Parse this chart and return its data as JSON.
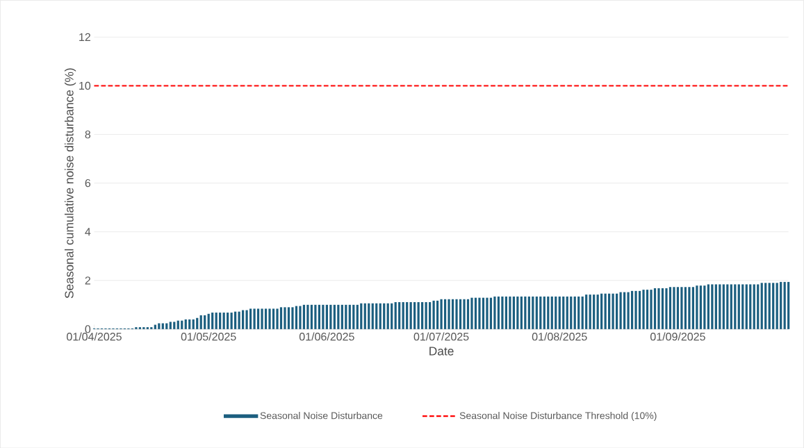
{
  "chart_data": {
    "type": "bar",
    "xlabel": "Date",
    "ylabel": "Seasonal cumulative noise disturbance (%)",
    "x": [
      "2025-04-01",
      "2025-04-02",
      "2025-04-03",
      "2025-04-04",
      "2025-04-05",
      "2025-04-06",
      "2025-04-07",
      "2025-04-08",
      "2025-04-09",
      "2025-04-10",
      "2025-04-11",
      "2025-04-12",
      "2025-04-13",
      "2025-04-14",
      "2025-04-15",
      "2025-04-16",
      "2025-04-17",
      "2025-04-18",
      "2025-04-19",
      "2025-04-20",
      "2025-04-21",
      "2025-04-22",
      "2025-04-23",
      "2025-04-24",
      "2025-04-25",
      "2025-04-26",
      "2025-04-27",
      "2025-04-28",
      "2025-04-29",
      "2025-04-30",
      "2025-05-01",
      "2025-05-02",
      "2025-05-03",
      "2025-05-04",
      "2025-05-05",
      "2025-05-06",
      "2025-05-07",
      "2025-05-08",
      "2025-05-09",
      "2025-05-10",
      "2025-05-11",
      "2025-05-12",
      "2025-05-13",
      "2025-05-14",
      "2025-05-15",
      "2025-05-16",
      "2025-05-17",
      "2025-05-18",
      "2025-05-19",
      "2025-05-20",
      "2025-05-21",
      "2025-05-22",
      "2025-05-23",
      "2025-05-24",
      "2025-05-25",
      "2025-05-26",
      "2025-05-27",
      "2025-05-28",
      "2025-05-29",
      "2025-05-30",
      "2025-05-31",
      "2025-06-01",
      "2025-06-02",
      "2025-06-03",
      "2025-06-04",
      "2025-06-05",
      "2025-06-06",
      "2025-06-07",
      "2025-06-08",
      "2025-06-09",
      "2025-06-10",
      "2025-06-11",
      "2025-06-12",
      "2025-06-13",
      "2025-06-14",
      "2025-06-15",
      "2025-06-16",
      "2025-06-17",
      "2025-06-18",
      "2025-06-19",
      "2025-06-20",
      "2025-06-21",
      "2025-06-22",
      "2025-06-23",
      "2025-06-24",
      "2025-06-25",
      "2025-06-26",
      "2025-06-27",
      "2025-06-28",
      "2025-06-29",
      "2025-06-30",
      "2025-07-01",
      "2025-07-02",
      "2025-07-03",
      "2025-07-04",
      "2025-07-05",
      "2025-07-06",
      "2025-07-07",
      "2025-07-08",
      "2025-07-09",
      "2025-07-10",
      "2025-07-11",
      "2025-07-12",
      "2025-07-13",
      "2025-07-14",
      "2025-07-15",
      "2025-07-16",
      "2025-07-17",
      "2025-07-18",
      "2025-07-19",
      "2025-07-20",
      "2025-07-21",
      "2025-07-22",
      "2025-07-23",
      "2025-07-24",
      "2025-07-25",
      "2025-07-26",
      "2025-07-27",
      "2025-07-28",
      "2025-07-29",
      "2025-07-30",
      "2025-07-31",
      "2025-08-01",
      "2025-08-02",
      "2025-08-03",
      "2025-08-04",
      "2025-08-05",
      "2025-08-06",
      "2025-08-07",
      "2025-08-08",
      "2025-08-09",
      "2025-08-10",
      "2025-08-11",
      "2025-08-12",
      "2025-08-13",
      "2025-08-14",
      "2025-08-15",
      "2025-08-16",
      "2025-08-17",
      "2025-08-18",
      "2025-08-19",
      "2025-08-20",
      "2025-08-21",
      "2025-08-22",
      "2025-08-23",
      "2025-08-24",
      "2025-08-25",
      "2025-08-26",
      "2025-08-27",
      "2025-08-28",
      "2025-08-29",
      "2025-08-30",
      "2025-08-31",
      "2025-09-01",
      "2025-09-02",
      "2025-09-03",
      "2025-09-04",
      "2025-09-05",
      "2025-09-06",
      "2025-09-07",
      "2025-09-08",
      "2025-09-09",
      "2025-09-10",
      "2025-09-11",
      "2025-09-12",
      "2025-09-13",
      "2025-09-14",
      "2025-09-15",
      "2025-09-16",
      "2025-09-17",
      "2025-09-18",
      "2025-09-19",
      "2025-09-20",
      "2025-09-21",
      "2025-09-22",
      "2025-09-23",
      "2025-09-24",
      "2025-09-25",
      "2025-09-26",
      "2025-09-27",
      "2025-09-28",
      "2025-09-29",
      "2025-09-30"
    ],
    "series": [
      {
        "name": "Seasonal Noise Disturbance",
        "color": "#1b5e7f",
        "values": [
          0.03,
          0.03,
          0.03,
          0.03,
          0.03,
          0.03,
          0.03,
          0.03,
          0.03,
          0.03,
          0.03,
          0.08,
          0.08,
          0.08,
          0.08,
          0.08,
          0.18,
          0.24,
          0.24,
          0.24,
          0.3,
          0.3,
          0.35,
          0.35,
          0.4,
          0.4,
          0.4,
          0.46,
          0.57,
          0.57,
          0.63,
          0.68,
          0.68,
          0.68,
          0.68,
          0.68,
          0.68,
          0.72,
          0.72,
          0.78,
          0.78,
          0.84,
          0.84,
          0.84,
          0.84,
          0.84,
          0.84,
          0.84,
          0.84,
          0.9,
          0.9,
          0.9,
          0.9,
          0.95,
          0.95,
          1.0,
          1.0,
          1.0,
          1.0,
          1.0,
          1.0,
          1.0,
          1.0,
          1.0,
          1.0,
          1.0,
          1.0,
          1.0,
          1.0,
          1.0,
          1.06,
          1.06,
          1.06,
          1.06,
          1.06,
          1.06,
          1.06,
          1.06,
          1.06,
          1.11,
          1.11,
          1.11,
          1.11,
          1.11,
          1.11,
          1.11,
          1.11,
          1.11,
          1.11,
          1.17,
          1.17,
          1.23,
          1.23,
          1.23,
          1.23,
          1.23,
          1.23,
          1.23,
          1.23,
          1.29,
          1.29,
          1.29,
          1.29,
          1.29,
          1.29,
          1.34,
          1.34,
          1.34,
          1.34,
          1.34,
          1.34,
          1.34,
          1.34,
          1.34,
          1.34,
          1.34,
          1.34,
          1.34,
          1.34,
          1.34,
          1.34,
          1.34,
          1.34,
          1.34,
          1.34,
          1.34,
          1.34,
          1.34,
          1.34,
          1.42,
          1.42,
          1.42,
          1.42,
          1.46,
          1.46,
          1.46,
          1.46,
          1.46,
          1.52,
          1.52,
          1.52,
          1.57,
          1.57,
          1.57,
          1.62,
          1.62,
          1.62,
          1.68,
          1.68,
          1.68,
          1.68,
          1.73,
          1.73,
          1.73,
          1.73,
          1.73,
          1.73,
          1.73,
          1.79,
          1.79,
          1.79,
          1.84,
          1.84,
          1.84,
          1.84,
          1.84,
          1.84,
          1.84,
          1.84,
          1.84,
          1.84,
          1.84,
          1.84,
          1.84,
          1.84,
          1.9,
          1.9,
          1.9,
          1.9,
          1.9,
          1.94,
          1.94,
          1.94
        ]
      }
    ],
    "ref_lines": [
      {
        "axis": "y",
        "value": 10,
        "label": "Seasonal Noise Disturbance Threshold (10%)",
        "color": "#ff0000",
        "line_style": "dashed"
      }
    ],
    "xlim": [
      "2025-04-01",
      "2025-09-30"
    ],
    "xticks": [
      {
        "value": "2025-04-01",
        "label": "01/04/2025"
      },
      {
        "value": "2025-05-01",
        "label": "01/05/2025"
      },
      {
        "value": "2025-06-01",
        "label": "01/06/2025"
      },
      {
        "value": "2025-07-01",
        "label": "01/07/2025"
      },
      {
        "value": "2025-08-01",
        "label": "01/08/2025"
      },
      {
        "value": "2025-09-01",
        "label": "01/09/2025"
      }
    ],
    "ylim": [
      0,
      12
    ],
    "yticks": [
      0,
      2,
      4,
      6,
      8,
      10,
      12
    ],
    "grid": "y",
    "legend": "bottom"
  }
}
